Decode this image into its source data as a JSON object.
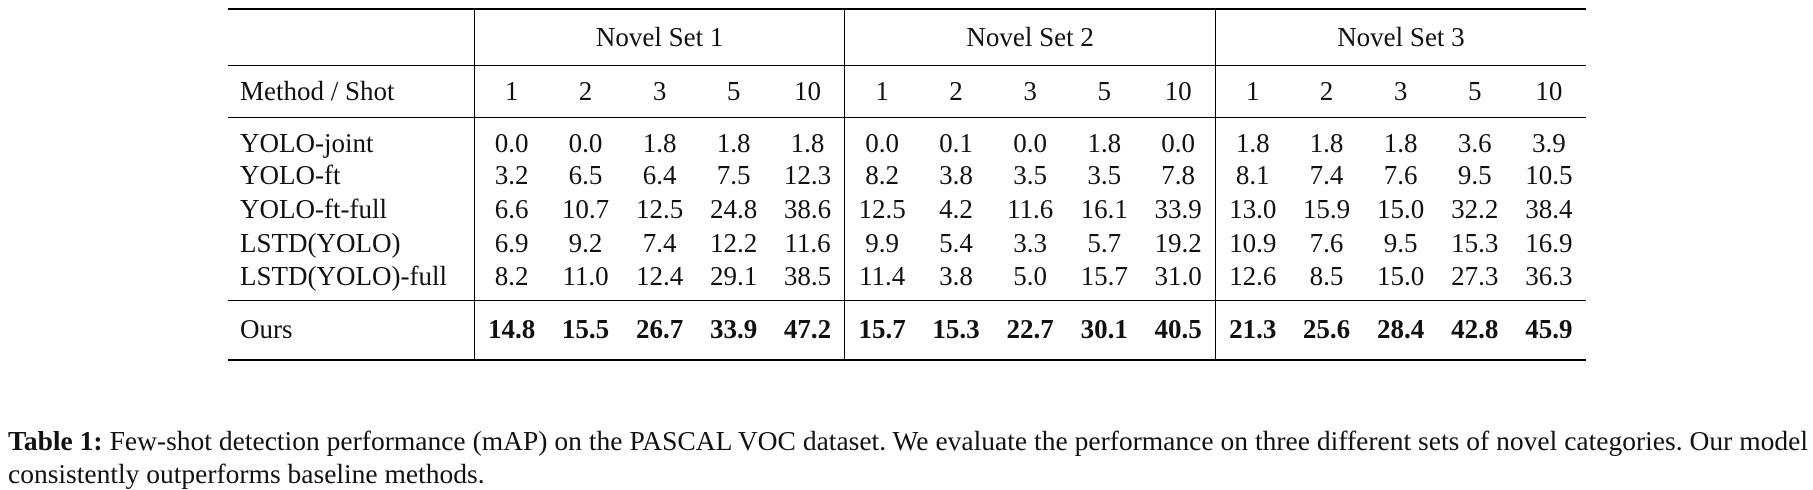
{
  "table": {
    "corner_header": "",
    "groups": [
      "Novel Set 1",
      "Novel Set 2",
      "Novel Set 3"
    ],
    "method_shot_header": "Method / Shot",
    "shots": [
      "1",
      "2",
      "3",
      "5",
      "10"
    ],
    "rows": [
      {
        "method": "YOLO-joint",
        "values": [
          "0.0",
          "0.0",
          "1.8",
          "1.8",
          "1.8",
          "0.0",
          "0.1",
          "0.0",
          "1.8",
          "0.0",
          "1.8",
          "1.8",
          "1.8",
          "3.6",
          "3.9"
        ]
      },
      {
        "method": "YOLO-ft",
        "values": [
          "3.2",
          "6.5",
          "6.4",
          "7.5",
          "12.3",
          "8.2",
          "3.8",
          "3.5",
          "3.5",
          "7.8",
          "8.1",
          "7.4",
          "7.6",
          "9.5",
          "10.5"
        ]
      },
      {
        "method": "YOLO-ft-full",
        "values": [
          "6.6",
          "10.7",
          "12.5",
          "24.8",
          "38.6",
          "12.5",
          "4.2",
          "11.6",
          "16.1",
          "33.9",
          "13.0",
          "15.9",
          "15.0",
          "32.2",
          "38.4"
        ]
      },
      {
        "method": "LSTD(YOLO)",
        "values": [
          "6.9",
          "9.2",
          "7.4",
          "12.2",
          "11.6",
          "9.9",
          "5.4",
          "3.3",
          "5.7",
          "19.2",
          "10.9",
          "7.6",
          "9.5",
          "15.3",
          "16.9"
        ]
      },
      {
        "method": "LSTD(YOLO)-full",
        "values": [
          "8.2",
          "11.0",
          "12.4",
          "29.1",
          "38.5",
          "11.4",
          "3.8",
          "5.0",
          "15.7",
          "31.0",
          "12.6",
          "8.5",
          "15.0",
          "27.3",
          "36.3"
        ]
      }
    ],
    "ours": {
      "method": "Ours",
      "values": [
        "14.8",
        "15.5",
        "26.7",
        "33.9",
        "47.2",
        "15.7",
        "15.3",
        "22.7",
        "30.1",
        "40.5",
        "21.3",
        "25.6",
        "28.4",
        "42.8",
        "45.9"
      ]
    }
  },
  "caption": {
    "label": "Table 1:",
    "text": "Few-shot detection performance (mAP) on the PASCAL VOC dataset. We evaluate the performance on three different sets of novel categories. Our model consistently outperforms baseline methods."
  }
}
